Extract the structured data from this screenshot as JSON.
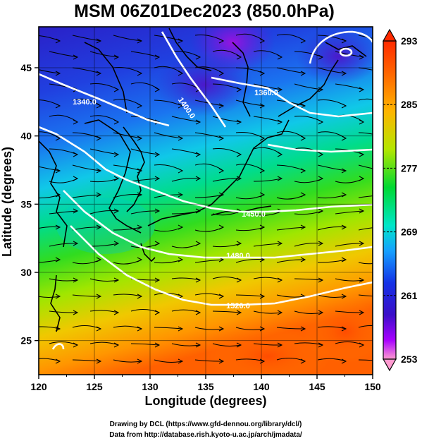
{
  "title": "MSM 06Z01Dec2023 (850.0hPa)",
  "xlabel": "Longitude (degrees)",
  "ylabel": "Latitude  (degrees)",
  "footer": {
    "line1": "Drawing by DCL (https://www.gfd-dennou.org/library/dcl/)",
    "line2": "Data from http://database.rish.kyoto-u.ac.jp/arch/jmadata/"
  },
  "map": {
    "lon_range": [
      120,
      150
    ],
    "lat_range": [
      22.5,
      48
    ],
    "x_ticks": [
      "120",
      "125",
      "130",
      "135",
      "140",
      "145",
      "150"
    ],
    "y_ticks": [
      "25",
      "30",
      "35",
      "40",
      "45"
    ],
    "grid": true
  },
  "colorbar": {
    "ticks": [
      "293",
      "285",
      "277",
      "269",
      "261",
      "253"
    ],
    "min": 253,
    "max": 293,
    "colors": [
      "#ff9ad0",
      "#a700ff",
      "#3a0ec8",
      "#1432e6",
      "#16a0ff",
      "#00e6c8",
      "#00d832",
      "#78e600",
      "#d2e600",
      "#ffb400",
      "#ff5a00",
      "#ff2a00"
    ]
  },
  "contour_labels": [
    "1340.0",
    "1400.0",
    "1360.0",
    "1450.0",
    "1480.0",
    "1520.0"
  ],
  "colors": {
    "contour": "#ffffff",
    "streamline": "#000000",
    "coastline": "#000000"
  }
}
